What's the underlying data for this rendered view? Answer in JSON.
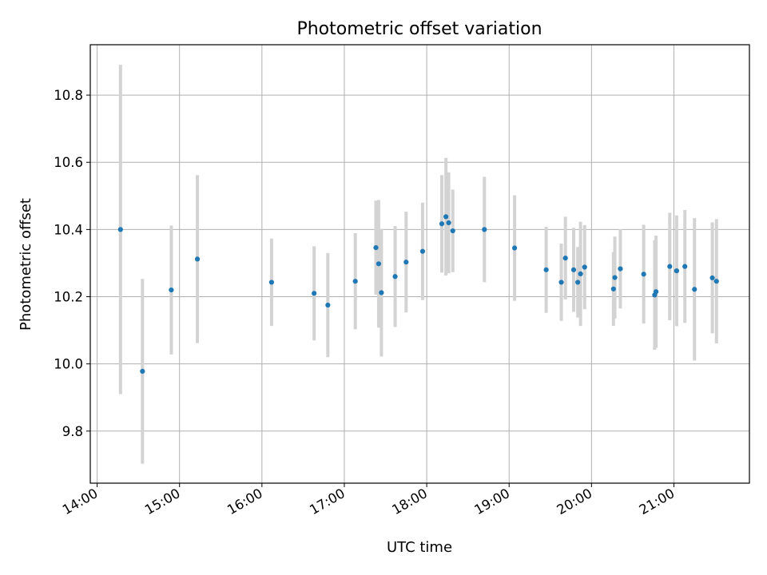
{
  "chart_data": {
    "type": "scatter",
    "title": "Photometric offset variation",
    "xlabel": "UTC time",
    "ylabel": "Photometric offset",
    "x_tick_labels": [
      "14:00",
      "15:00",
      "16:00",
      "17:00",
      "18:00",
      "19:00",
      "20:00",
      "21:00"
    ],
    "y_tick_labels": [
      "9.8",
      "10.0",
      "10.2",
      "10.4",
      "10.6",
      "10.8"
    ],
    "xlim": [
      "13:55",
      "21:55"
    ],
    "ylim": [
      9.645,
      10.95
    ],
    "grid": true,
    "errorbar_color": "#d3d3d3",
    "marker_color": "#1f77b4",
    "series": [
      {
        "points": [
          {
            "x": "14:17",
            "y": 10.4,
            "err": 0.49
          },
          {
            "x": "14:33",
            "y": 9.978,
            "err": 0.275
          },
          {
            "x": "14:54",
            "y": 10.22,
            "err": 0.192
          },
          {
            "x": "15:13",
            "y": 10.312,
            "err": 0.25
          },
          {
            "x": "16:07",
            "y": 10.243,
            "err": 0.13
          },
          {
            "x": "16:38",
            "y": 10.21,
            "err": 0.14
          },
          {
            "x": "16:48",
            "y": 10.175,
            "err": 0.155
          },
          {
            "x": "17:08",
            "y": 10.246,
            "err": 0.143
          },
          {
            "x": "17:23",
            "y": 10.346,
            "err": 0.14
          },
          {
            "x": "17:25",
            "y": 10.298,
            "err": 0.19
          },
          {
            "x": "17:27",
            "y": 10.212,
            "err": 0.19
          },
          {
            "x": "17:37",
            "y": 10.26,
            "err": 0.15
          },
          {
            "x": "17:45",
            "y": 10.303,
            "err": 0.15
          },
          {
            "x": "17:57",
            "y": 10.335,
            "err": 0.145
          },
          {
            "x": "18:11",
            "y": 10.417,
            "err": 0.145
          },
          {
            "x": "18:14",
            "y": 10.438,
            "err": 0.175
          },
          {
            "x": "18:16",
            "y": 10.42,
            "err": 0.15
          },
          {
            "x": "18:19",
            "y": 10.396,
            "err": 0.123
          },
          {
            "x": "18:42",
            "y": 10.4,
            "err": 0.157
          },
          {
            "x": "19:04",
            "y": 10.345,
            "err": 0.157
          },
          {
            "x": "19:27",
            "y": 10.28,
            "err": 0.128
          },
          {
            "x": "19:38",
            "y": 10.243,
            "err": 0.115
          },
          {
            "x": "19:41",
            "y": 10.315,
            "err": 0.123
          },
          {
            "x": "19:47",
            "y": 10.28,
            "err": 0.125
          },
          {
            "x": "19:50",
            "y": 10.243,
            "err": 0.105
          },
          {
            "x": "19:52",
            "y": 10.268,
            "err": 0.155
          },
          {
            "x": "19:55",
            "y": 10.288,
            "err": 0.125
          },
          {
            "x": "20:16",
            "y": 10.223,
            "err": 0.11
          },
          {
            "x": "20:17",
            "y": 10.257,
            "err": 0.122
          },
          {
            "x": "20:21",
            "y": 10.283,
            "err": 0.118
          },
          {
            "x": "20:38",
            "y": 10.267,
            "err": 0.147
          },
          {
            "x": "20:46",
            "y": 10.205,
            "err": 0.163
          },
          {
            "x": "20:47",
            "y": 10.215,
            "err": 0.167
          },
          {
            "x": "20:57",
            "y": 10.29,
            "err": 0.16
          },
          {
            "x": "21:02",
            "y": 10.277,
            "err": 0.165
          },
          {
            "x": "21:08",
            "y": 10.29,
            "err": 0.168
          },
          {
            "x": "21:15",
            "y": 10.222,
            "err": 0.212
          },
          {
            "x": "21:28",
            "y": 10.256,
            "err": 0.165
          },
          {
            "x": "21:31",
            "y": 10.246,
            "err": 0.185
          }
        ]
      }
    ]
  }
}
